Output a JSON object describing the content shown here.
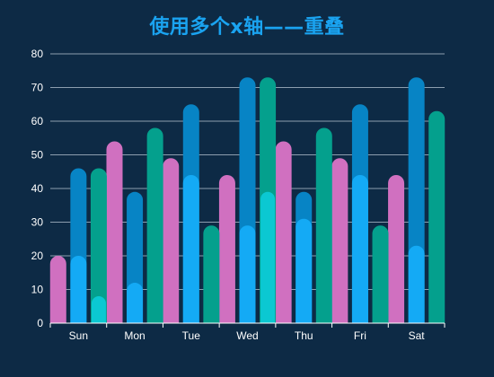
{
  "chart_data": {
    "type": "bar",
    "title": "使用多个x轴——重叠",
    "categories": [
      "Sun",
      "Mon",
      "Tue",
      "Wed",
      "Thu",
      "Fri",
      "Sat"
    ],
    "ylim": [
      0,
      80
    ],
    "yticks": [
      0,
      10,
      20,
      30,
      40,
      50,
      60,
      70,
      80
    ],
    "grid": true,
    "series": [
      {
        "values": [
          20,
          54,
          49,
          44,
          54,
          49,
          44
        ],
        "color": "#d070c0",
        "slot": 0,
        "width": "full"
      },
      {
        "values": [
          46,
          39,
          65,
          73,
          39,
          65,
          73
        ],
        "color": "#0784c5",
        "slot": 1,
        "width": "full"
      },
      {
        "values": [
          20,
          12,
          44,
          29,
          31,
          44,
          23
        ],
        "color": "#14aaf5",
        "slot": 1,
        "width": "full"
      },
      {
        "values": [
          46,
          58,
          29,
          73,
          58,
          29,
          63
        ],
        "color": "#04a08d",
        "slot": 2,
        "width": "full"
      },
      {
        "values": [
          8,
          0,
          0,
          39,
          0,
          0,
          0
        ],
        "color": "#0bc8d2",
        "slot": 2,
        "width": "narrow"
      }
    ]
  }
}
